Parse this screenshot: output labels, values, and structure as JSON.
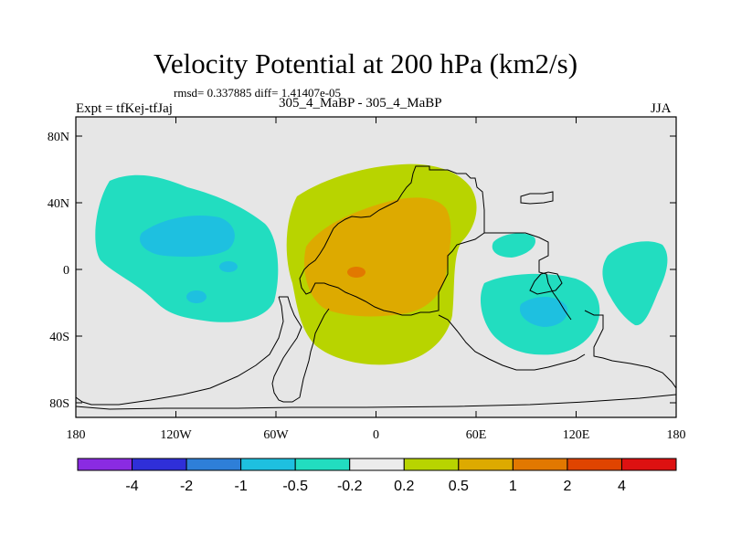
{
  "title": "Velocity Potential at 200 hPa (km2/s)",
  "stats_line": "rmsd= 0.337885 diff= 1.41407e-05",
  "left_label": "Expt = tfKej-tfJaj",
  "center_label": "305_4_MaBP - 305_4_MaBP",
  "right_label": "JJA",
  "axes": {
    "lon_ticks": [
      "180",
      "120W",
      "60W",
      "0",
      "60E",
      "120E",
      "180"
    ],
    "lat_ticks": [
      "80N",
      "40N",
      "0",
      "40S",
      "80S"
    ]
  },
  "colorbar": {
    "colors": [
      "#8a2be2",
      "#2f2fd8",
      "#2e7fd8",
      "#1ec0e0",
      "#22ddc0",
      "#ececec",
      "#b8d400",
      "#ddaa00",
      "#e27800",
      "#e04400",
      "#dd1111"
    ],
    "labels": [
      "-4",
      "-2",
      "-1",
      "-0.5",
      "-0.2",
      "0.2",
      "0.5",
      "1",
      "2",
      "4"
    ]
  },
  "colors": {
    "background": "#e6e6e6",
    "teal": "#22ddc0",
    "cyan": "#1ec0e0",
    "yellow_green": "#b8d400",
    "gold": "#ddaa00",
    "orange": "#e27800"
  }
}
